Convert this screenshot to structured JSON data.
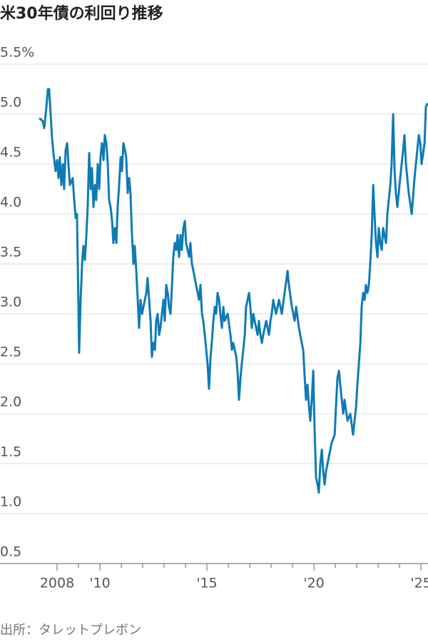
{
  "chart_data": {
    "type": "line",
    "title": "米30年債の利回り推移",
    "source": "出所：タレットプレボン",
    "color": "#0f7bb5",
    "xlim": [
      2007,
      2025.33
    ],
    "ylim": [
      0.5,
      5.5
    ],
    "xticks": [
      {
        "value": 2008,
        "label": "2008"
      },
      {
        "value": 2010,
        "label": "'10"
      },
      {
        "value": 2015,
        "label": "'15"
      },
      {
        "value": 2020,
        "label": "'20"
      },
      {
        "value": 2025,
        "label": "'25"
      }
    ],
    "xminorticks": [
      2009,
      2011,
      2012,
      2013,
      2014,
      2016,
      2017,
      2018,
      2019,
      2021,
      2022,
      2023,
      2024
    ],
    "yticks": [
      {
        "value": 0.5,
        "label": "0.5"
      },
      {
        "value": 1,
        "label": "1.0"
      },
      {
        "value": 1.5,
        "label": "1.5"
      },
      {
        "value": 2,
        "label": "2.0"
      },
      {
        "value": 2.5,
        "label": "2.5"
      },
      {
        "value": 3,
        "label": "3.0"
      },
      {
        "value": 3.5,
        "label": "3.5"
      },
      {
        "value": 4,
        "label": "4.0"
      },
      {
        "value": 4.5,
        "label": "4.5"
      },
      {
        "value": 5,
        "label": "5.0"
      },
      {
        "value": 5.5,
        "label": "5.5%"
      }
    ],
    "grid": true,
    "x": [
      2007.17,
      2007.33,
      2007.4,
      2007.5,
      2007.57,
      2007.63,
      2007.7,
      2007.77,
      2007.83,
      2007.93,
      2008.0,
      2008.07,
      2008.13,
      2008.2,
      2008.27,
      2008.33,
      2008.4,
      2008.47,
      2008.53,
      2008.6,
      2008.73,
      2008.8,
      2008.87,
      2008.93,
      2009.0,
      2009.03,
      2009.1,
      2009.17,
      2009.23,
      2009.3,
      2009.37,
      2009.43,
      2009.5,
      2009.57,
      2009.63,
      2009.7,
      2009.77,
      2009.83,
      2009.9,
      2009.97,
      2010.03,
      2010.1,
      2010.17,
      2010.23,
      2010.3,
      2010.37,
      2010.43,
      2010.5,
      2010.57,
      2010.63,
      2010.7,
      2010.77,
      2010.83,
      2010.9,
      2010.97,
      2011.03,
      2011.1,
      2011.17,
      2011.23,
      2011.3,
      2011.37,
      2011.43,
      2011.5,
      2011.57,
      2011.63,
      2011.7,
      2011.77,
      2011.83,
      2011.9,
      2011.97,
      2012.1,
      2012.17,
      2012.23,
      2012.3,
      2012.37,
      2012.43,
      2012.5,
      2012.57,
      2012.63,
      2012.7,
      2012.77,
      2012.83,
      2012.9,
      2012.97,
      2013.03,
      2013.1,
      2013.17,
      2013.23,
      2013.3,
      2013.37,
      2013.43,
      2013.5,
      2013.57,
      2013.63,
      2013.7,
      2013.77,
      2013.83,
      2013.9,
      2013.97,
      2014.03,
      2014.1,
      2014.17,
      2014.23,
      2014.3,
      2014.37,
      2014.43,
      2014.57,
      2014.63,
      2014.7,
      2014.77,
      2014.83,
      2014.9,
      2014.97,
      2015.03,
      2015.1,
      2015.17,
      2015.23,
      2015.3,
      2015.37,
      2015.43,
      2015.5,
      2015.57,
      2015.63,
      2015.7,
      2015.77,
      2015.83,
      2015.97,
      2016.1,
      2016.17,
      2016.23,
      2016.3,
      2016.37,
      2016.43,
      2016.5,
      2016.57,
      2016.63,
      2016.7,
      2016.77,
      2016.83,
      2016.9,
      2016.97,
      2017.03,
      2017.1,
      2017.17,
      2017.3,
      2017.37,
      2017.43,
      2017.5,
      2017.57,
      2017.63,
      2017.77,
      2017.9,
      2017.97,
      2018.03,
      2018.1,
      2018.23,
      2018.37,
      2018.5,
      2018.63,
      2018.77,
      2018.83,
      2018.97,
      2019.1,
      2019.17,
      2019.3,
      2019.43,
      2019.5,
      2019.57,
      2019.63,
      2019.7,
      2019.77,
      2019.83,
      2019.9,
      2019.97,
      2020.03,
      2020.1,
      2020.17,
      2020.23,
      2020.3,
      2020.37,
      2020.43,
      2020.5,
      2020.57,
      2020.7,
      2020.83,
      2020.97,
      2021.03,
      2021.1,
      2021.17,
      2021.23,
      2021.3,
      2021.37,
      2021.43,
      2021.57,
      2021.7,
      2021.83,
      2021.9,
      2021.97,
      2022.03,
      2022.1,
      2022.17,
      2022.23,
      2022.3,
      2022.37,
      2022.43,
      2022.5,
      2022.57,
      2022.63,
      2022.7,
      2022.77,
      2022.83,
      2022.9,
      2022.97,
      2023.03,
      2023.1,
      2023.17,
      2023.23,
      2023.37,
      2023.43,
      2023.57,
      2023.63,
      2023.7,
      2023.77,
      2023.83,
      2023.9,
      2024.03,
      2024.17,
      2024.23,
      2024.3,
      2024.43,
      2024.57,
      2024.7,
      2024.83,
      2024.9,
      2024.97,
      2025.03,
      2025.17,
      2025.23,
      2025.3
    ],
    "values": [
      4.96,
      4.93,
      4.86,
      5.07,
      5.25,
      5.25,
      5.0,
      4.75,
      4.61,
      4.43,
      4.54,
      4.36,
      4.57,
      4.29,
      4.5,
      4.25,
      4.64,
      4.71,
      4.5,
      4.29,
      4.36,
      4.14,
      3.96,
      4.0,
      3.07,
      2.61,
      3.14,
      3.5,
      3.68,
      3.54,
      3.79,
      4.07,
      4.61,
      4.25,
      4.46,
      4.07,
      4.29,
      4.14,
      4.5,
      4.25,
      4.57,
      4.71,
      4.54,
      4.79,
      4.71,
      4.5,
      4.14,
      4.07,
      3.93,
      3.71,
      3.86,
      3.71,
      4.07,
      4.29,
      4.57,
      4.43,
      4.71,
      4.64,
      4.57,
      4.21,
      4.36,
      4.21,
      3.79,
      3.5,
      3.68,
      3.43,
      3.14,
      2.86,
      3.14,
      3.0,
      3.14,
      3.21,
      3.36,
      3.14,
      2.93,
      2.57,
      2.71,
      2.64,
      2.93,
      3.0,
      2.79,
      2.86,
      3.0,
      3.14,
      2.93,
      3.29,
      3.21,
      3.07,
      3.0,
      3.29,
      3.57,
      3.71,
      3.64,
      3.79,
      3.57,
      3.79,
      3.64,
      3.86,
      3.93,
      3.71,
      3.64,
      3.57,
      3.71,
      3.5,
      3.43,
      3.36,
      3.21,
      3.14,
      3.29,
      3.0,
      2.93,
      2.79,
      2.64,
      2.5,
      2.25,
      2.57,
      2.71,
      2.93,
      3.07,
      3.0,
      3.21,
      3.14,
      3.0,
      2.86,
      3.07,
      2.93,
      3.0,
      2.79,
      2.64,
      2.71,
      2.64,
      2.57,
      2.43,
      2.14,
      2.36,
      2.5,
      2.64,
      2.79,
      3.07,
      3.14,
      3.21,
      3.07,
      2.86,
      3.0,
      2.86,
      2.79,
      2.93,
      2.79,
      2.71,
      2.79,
      2.93,
      2.79,
      2.93,
      3.0,
      3.14,
      3.0,
      3.14,
      3.0,
      3.21,
      3.43,
      3.29,
      3.07,
      2.93,
      3.07,
      2.86,
      2.71,
      2.64,
      2.36,
      2.14,
      2.29,
      2.07,
      1.93,
      2.14,
      2.43,
      1.86,
      1.36,
      1.29,
      1.21,
      1.5,
      1.64,
      1.43,
      1.29,
      1.43,
      1.57,
      1.71,
      1.79,
      2.07,
      2.36,
      2.43,
      2.29,
      2.14,
      2.0,
      2.14,
      1.93,
      2.0,
      1.79,
      1.93,
      2.07,
      2.29,
      2.5,
      2.71,
      3.07,
      3.21,
      3.14,
      3.29,
      3.21,
      3.29,
      3.5,
      3.79,
      4.29,
      4.0,
      3.71,
      3.57,
      3.86,
      3.71,
      3.64,
      3.86,
      3.71,
      4.0,
      4.29,
      4.5,
      5.0,
      4.43,
      4.21,
      4.07,
      4.36,
      4.64,
      4.79,
      4.5,
      4.21,
      4.0,
      4.36,
      4.64,
      4.79,
      4.71,
      4.5,
      4.71,
      5.07,
      5.11
    ]
  }
}
